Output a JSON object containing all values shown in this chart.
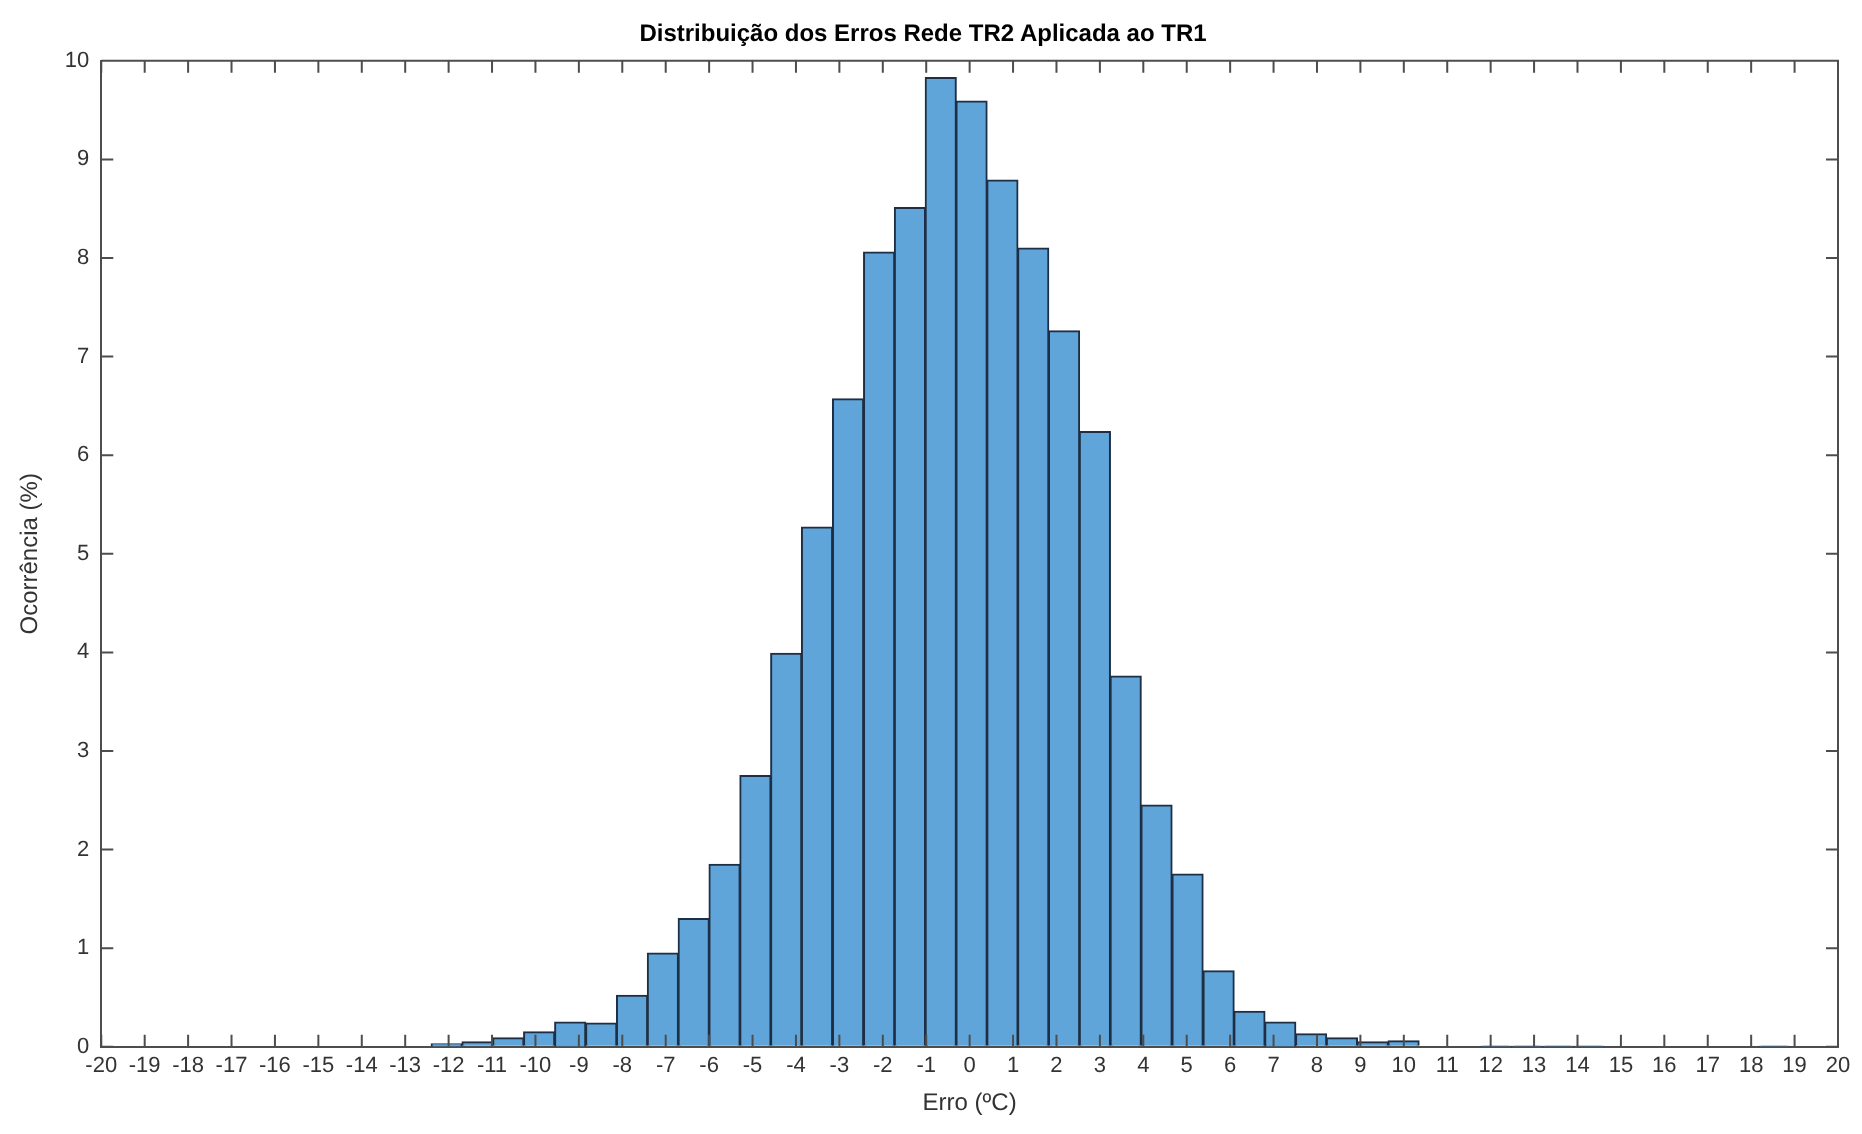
{
  "chart_data": {
    "type": "histogram",
    "title": "Distribuição dos Erros Rede TR2 Aplicada ao TR1",
    "xlabel": "Erro (ºC)",
    "ylabel": "Ocorrência (%)",
    "bins": [
      -12.4,
      -11.69,
      -10.98,
      -10.27,
      -9.56,
      -8.84,
      -8.13,
      -7.42,
      -6.71,
      -6.0,
      -5.29,
      -4.58,
      -3.87,
      -3.16,
      -2.44,
      -1.73,
      -1.02,
      -0.31,
      0.4,
      1.11,
      1.82,
      2.53,
      3.24,
      3.95,
      4.66,
      5.38,
      6.09,
      6.8,
      7.51,
      8.22,
      8.93,
      9.64,
      10.35,
      11.06,
      11.77,
      12.48,
      13.2,
      13.91,
      14.62,
      15.33,
      16.04,
      16.75,
      17.46,
      18.17,
      18.88
    ],
    "values": [
      0.03,
      0.05,
      0.09,
      0.15,
      0.25,
      0.24,
      0.52,
      0.95,
      1.3,
      1.85,
      2.75,
      3.99,
      5.27,
      6.57,
      8.06,
      8.51,
      9.83,
      9.59,
      8.79,
      8.1,
      7.26,
      6.24,
      3.76,
      2.45,
      1.75,
      0.77,
      0.36,
      0.25,
      0.13,
      0.09,
      0.05,
      0.06,
      null,
      null,
      0.01,
      0.01,
      0.01,
      0.01,
      0,
      0,
      0,
      0,
      0,
      0.01
    ],
    "color": "#5fa5d9",
    "xlim": [
      -20,
      20
    ],
    "xticks": [
      -20,
      -19,
      -18,
      -17,
      -16,
      -15,
      -14,
      -13,
      -12,
      -11,
      -10,
      -9,
      -8,
      -7,
      -6,
      -5,
      -4,
      -3,
      -2,
      -1,
      0,
      1,
      2,
      3,
      4,
      5,
      6,
      7,
      8,
      9,
      10,
      11,
      12,
      13,
      14,
      15,
      16,
      17,
      18,
      19,
      20
    ],
    "ylim": [
      0,
      10
    ],
    "yticks": [
      0,
      1,
      2,
      3,
      4,
      5,
      6,
      7,
      8,
      9,
      10
    ],
    "grid": false,
    "legend": false
  }
}
